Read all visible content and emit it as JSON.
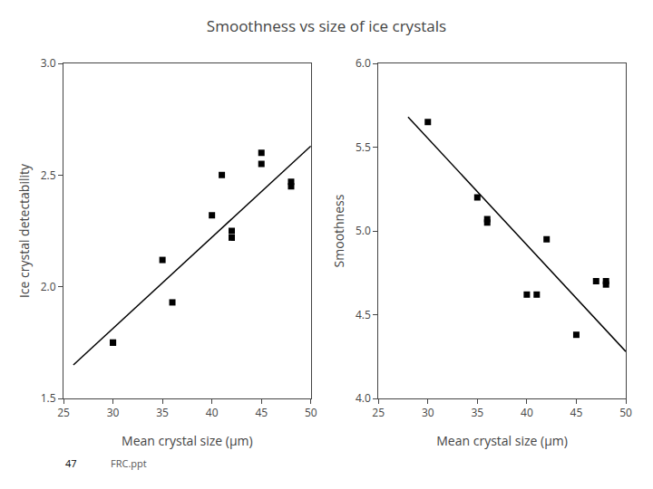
{
  "chart_data": [
    {
      "type": "scatter",
      "title": "Smoothness vs size of ice crystals",
      "annotations": [
        "47",
        "FRC.ppt"
      ],
      "xlabel": "Mean crystal size (μm)",
      "ylabel": "Ice crystal detectability",
      "xlim": [
        25,
        50
      ],
      "ylim": [
        1.5,
        3.0
      ],
      "xticks": [
        25,
        30,
        35,
        40,
        45,
        50
      ],
      "yticks": [
        1.5,
        {
          "value": 2.0,
          "label": "2.0"
        },
        2.5,
        {
          "value": 3.0,
          "label": "3.0"
        }
      ],
      "grid": false,
      "series": [
        {
          "type": "scatter",
          "marker": "square",
          "color": "#000000",
          "x": [
            30,
            30,
            35,
            36,
            40,
            41,
            42,
            42,
            45,
            45,
            48,
            48
          ],
          "values": [
            1.75,
            1.75,
            2.12,
            1.93,
            2.32,
            2.5,
            2.25,
            2.22,
            2.6,
            2.55,
            2.47,
            2.45
          ]
        },
        {
          "type": "line",
          "line_style": "solid",
          "color": "#000000",
          "x": [
            26,
            50
          ],
          "values": [
            1.65,
            2.63
          ]
        }
      ]
    },
    {
      "type": "scatter",
      "xlabel": "Mean crystal size (μm)",
      "ylabel": "Smoothness",
      "xlim": [
        25,
        50
      ],
      "ylim": [
        4.0,
        6.0
      ],
      "xticks": [
        25,
        30,
        35,
        40,
        45,
        50
      ],
      "yticks": [
        {
          "value": 4.0,
          "label": "4.0"
        },
        4.5,
        {
          "value": 5.0,
          "label": "5.0"
        },
        5.5,
        {
          "value": 6.0,
          "label": "6.0"
        }
      ],
      "grid": false,
      "series": [
        {
          "type": "scatter",
          "marker": "square",
          "color": "#000000",
          "x": [
            30,
            35,
            36,
            36,
            40,
            41,
            42,
            45,
            47,
            48,
            48
          ],
          "values": [
            5.65,
            5.2,
            5.07,
            5.05,
            4.62,
            4.62,
            4.95,
            4.38,
            4.7,
            4.7,
            4.68
          ]
        },
        {
          "type": "line",
          "line_style": "solid",
          "color": "#000000",
          "x": [
            28,
            50
          ],
          "values": [
            5.68,
            4.28
          ]
        }
      ]
    }
  ]
}
